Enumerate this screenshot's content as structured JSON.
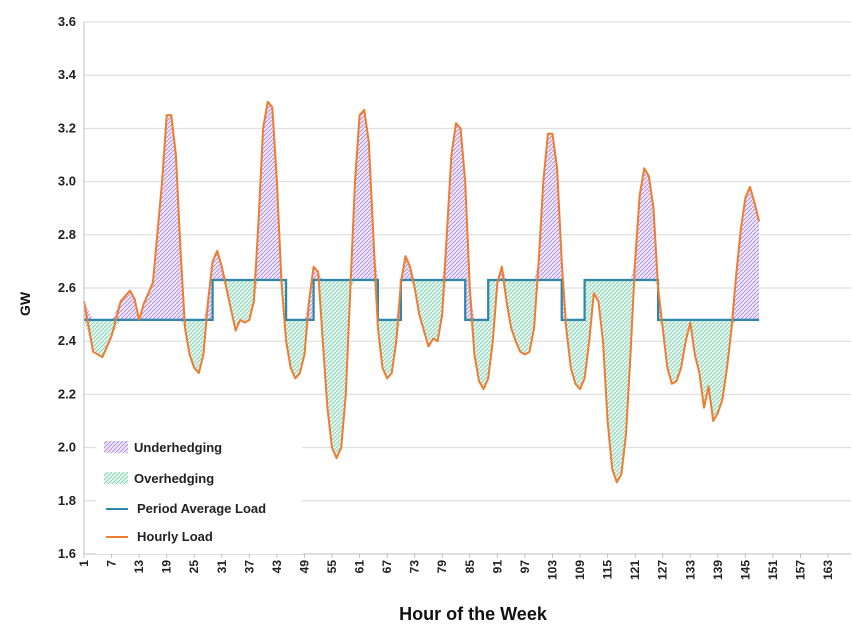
{
  "chart_data": {
    "type": "area",
    "title": "",
    "xlabel": "Hour of the Week",
    "ylabel": "GW",
    "xlim": [
      1,
      168
    ],
    "ylim": [
      1.6,
      3.6
    ],
    "y_ticks": [
      "1.6",
      "1.8",
      "2.0",
      "2.2",
      "2.4",
      "2.6",
      "2.8",
      "3.0",
      "3.2",
      "3.4",
      "3.6"
    ],
    "x_ticks": [
      "1",
      "7",
      "13",
      "19",
      "25",
      "31",
      "37",
      "43",
      "49",
      "55",
      "61",
      "67",
      "73",
      "79",
      "85",
      "91",
      "97",
      "103",
      "109",
      "115",
      "121",
      "127",
      "133",
      "139",
      "145",
      "151",
      "157",
      "163"
    ],
    "grid": "horizontal",
    "legend_position": "bottom-left",
    "legend": [
      {
        "label": "Underhedging",
        "kind": "fill",
        "color": "#c9b3e6"
      },
      {
        "label": "Overhedging",
        "kind": "fill",
        "color": "#a9e0cb"
      },
      {
        "label": "Period Average Load",
        "kind": "line",
        "color": "#2e86ab"
      },
      {
        "label": "Hourly Load",
        "kind": "line",
        "color": "#ed7d31"
      }
    ],
    "colors": {
      "underhedging": "#c9b3e6",
      "overhedging": "#a9e0cb",
      "period_average": "#2e86ab",
      "hourly_load": "#ed7d31",
      "grid": "#d9d9d9"
    },
    "series": [
      {
        "name": "Hourly Load",
        "points": [
          [
            1,
            2.55
          ],
          [
            3,
            2.36
          ],
          [
            5,
            2.34
          ],
          [
            7,
            2.42
          ],
          [
            9,
            2.55
          ],
          [
            11,
            2.59
          ],
          [
            12,
            2.56
          ],
          [
            13,
            2.48
          ],
          [
            14,
            2.54
          ],
          [
            16,
            2.62
          ],
          [
            18,
            3.0
          ],
          [
            19,
            3.25
          ],
          [
            20,
            3.25
          ],
          [
            21,
            3.1
          ],
          [
            22,
            2.75
          ],
          [
            23,
            2.45
          ],
          [
            24,
            2.35
          ],
          [
            25,
            2.3
          ],
          [
            26,
            2.28
          ],
          [
            27,
            2.35
          ],
          [
            28,
            2.55
          ],
          [
            29,
            2.7
          ],
          [
            30,
            2.74
          ],
          [
            31,
            2.68
          ],
          [
            32,
            2.6
          ],
          [
            33,
            2.52
          ],
          [
            34,
            2.44
          ],
          [
            35,
            2.48
          ],
          [
            36,
            2.47
          ],
          [
            37,
            2.48
          ],
          [
            38,
            2.55
          ],
          [
            39,
            2.85
          ],
          [
            40,
            3.2
          ],
          [
            41,
            3.3
          ],
          [
            42,
            3.28
          ],
          [
            43,
            3.0
          ],
          [
            44,
            2.62
          ],
          [
            45,
            2.4
          ],
          [
            46,
            2.3
          ],
          [
            47,
            2.26
          ],
          [
            48,
            2.28
          ],
          [
            49,
            2.35
          ],
          [
            50,
            2.55
          ],
          [
            51,
            2.68
          ],
          [
            52,
            2.66
          ],
          [
            53,
            2.4
          ],
          [
            54,
            2.15
          ],
          [
            55,
            2.0
          ],
          [
            56,
            1.96
          ],
          [
            57,
            2.0
          ],
          [
            58,
            2.2
          ],
          [
            59,
            2.6
          ],
          [
            60,
            3.0
          ],
          [
            61,
            3.25
          ],
          [
            62,
            3.27
          ],
          [
            63,
            3.15
          ],
          [
            64,
            2.8
          ],
          [
            65,
            2.45
          ],
          [
            66,
            2.3
          ],
          [
            67,
            2.26
          ],
          [
            68,
            2.28
          ],
          [
            69,
            2.4
          ],
          [
            70,
            2.62
          ],
          [
            71,
            2.72
          ],
          [
            72,
            2.68
          ],
          [
            73,
            2.6
          ],
          [
            74,
            2.5
          ],
          [
            75,
            2.44
          ],
          [
            76,
            2.38
          ],
          [
            77,
            2.41
          ],
          [
            78,
            2.4
          ],
          [
            79,
            2.5
          ],
          [
            80,
            2.8
          ],
          [
            81,
            3.1
          ],
          [
            82,
            3.22
          ],
          [
            83,
            3.2
          ],
          [
            84,
            3.0
          ],
          [
            85,
            2.6
          ],
          [
            86,
            2.35
          ],
          [
            87,
            2.25
          ],
          [
            88,
            2.22
          ],
          [
            89,
            2.26
          ],
          [
            90,
            2.4
          ],
          [
            91,
            2.62
          ],
          [
            92,
            2.68
          ],
          [
            93,
            2.55
          ],
          [
            94,
            2.45
          ],
          [
            95,
            2.4
          ],
          [
            96,
            2.36
          ],
          [
            97,
            2.35
          ],
          [
            98,
            2.36
          ],
          [
            99,
            2.45
          ],
          [
            100,
            2.7
          ],
          [
            101,
            3.0
          ],
          [
            102,
            3.18
          ],
          [
            103,
            3.18
          ],
          [
            104,
            3.05
          ],
          [
            105,
            2.7
          ],
          [
            106,
            2.45
          ],
          [
            107,
            2.3
          ],
          [
            108,
            2.24
          ],
          [
            109,
            2.22
          ],
          [
            110,
            2.26
          ],
          [
            111,
            2.4
          ],
          [
            112,
            2.58
          ],
          [
            113,
            2.55
          ],
          [
            114,
            2.4
          ],
          [
            115,
            2.1
          ],
          [
            116,
            1.92
          ],
          [
            117,
            1.87
          ],
          [
            118,
            1.9
          ],
          [
            119,
            2.05
          ],
          [
            120,
            2.35
          ],
          [
            121,
            2.7
          ],
          [
            122,
            2.95
          ],
          [
            123,
            3.05
          ],
          [
            124,
            3.02
          ],
          [
            125,
            2.9
          ],
          [
            126,
            2.6
          ],
          [
            127,
            2.45
          ],
          [
            128,
            2.3
          ],
          [
            129,
            2.24
          ],
          [
            130,
            2.25
          ],
          [
            131,
            2.3
          ],
          [
            132,
            2.4
          ],
          [
            133,
            2.47
          ],
          [
            134,
            2.35
          ],
          [
            135,
            2.28
          ],
          [
            136,
            2.15
          ],
          [
            137,
            2.23
          ],
          [
            138,
            2.1
          ],
          [
            139,
            2.13
          ],
          [
            140,
            2.18
          ],
          [
            141,
            2.3
          ],
          [
            142,
            2.45
          ],
          [
            143,
            2.65
          ],
          [
            144,
            2.82
          ],
          [
            145,
            2.94
          ],
          [
            146,
            2.98
          ],
          [
            147,
            2.92
          ],
          [
            148,
            2.85
          ]
        ]
      },
      {
        "name": "Period Average Load",
        "segments": [
          {
            "x0": 1,
            "x1": 29,
            "value": 2.48
          },
          {
            "x0": 29,
            "x1": 45,
            "value": 2.63
          },
          {
            "x0": 45,
            "x1": 51,
            "value": 2.48
          },
          {
            "x0": 51,
            "x1": 65,
            "value": 2.63
          },
          {
            "x0": 65,
            "x1": 70,
            "value": 2.48
          },
          {
            "x0": 70,
            "x1": 84,
            "value": 2.63
          },
          {
            "x0": 84,
            "x1": 89,
            "value": 2.48
          },
          {
            "x0": 89,
            "x1": 105,
            "value": 2.63
          },
          {
            "x0": 105,
            "x1": 110,
            "value": 2.48
          },
          {
            "x0": 110,
            "x1": 126,
            "value": 2.63
          },
          {
            "x0": 126,
            "x1": 148,
            "value": 2.48
          }
        ]
      }
    ]
  }
}
